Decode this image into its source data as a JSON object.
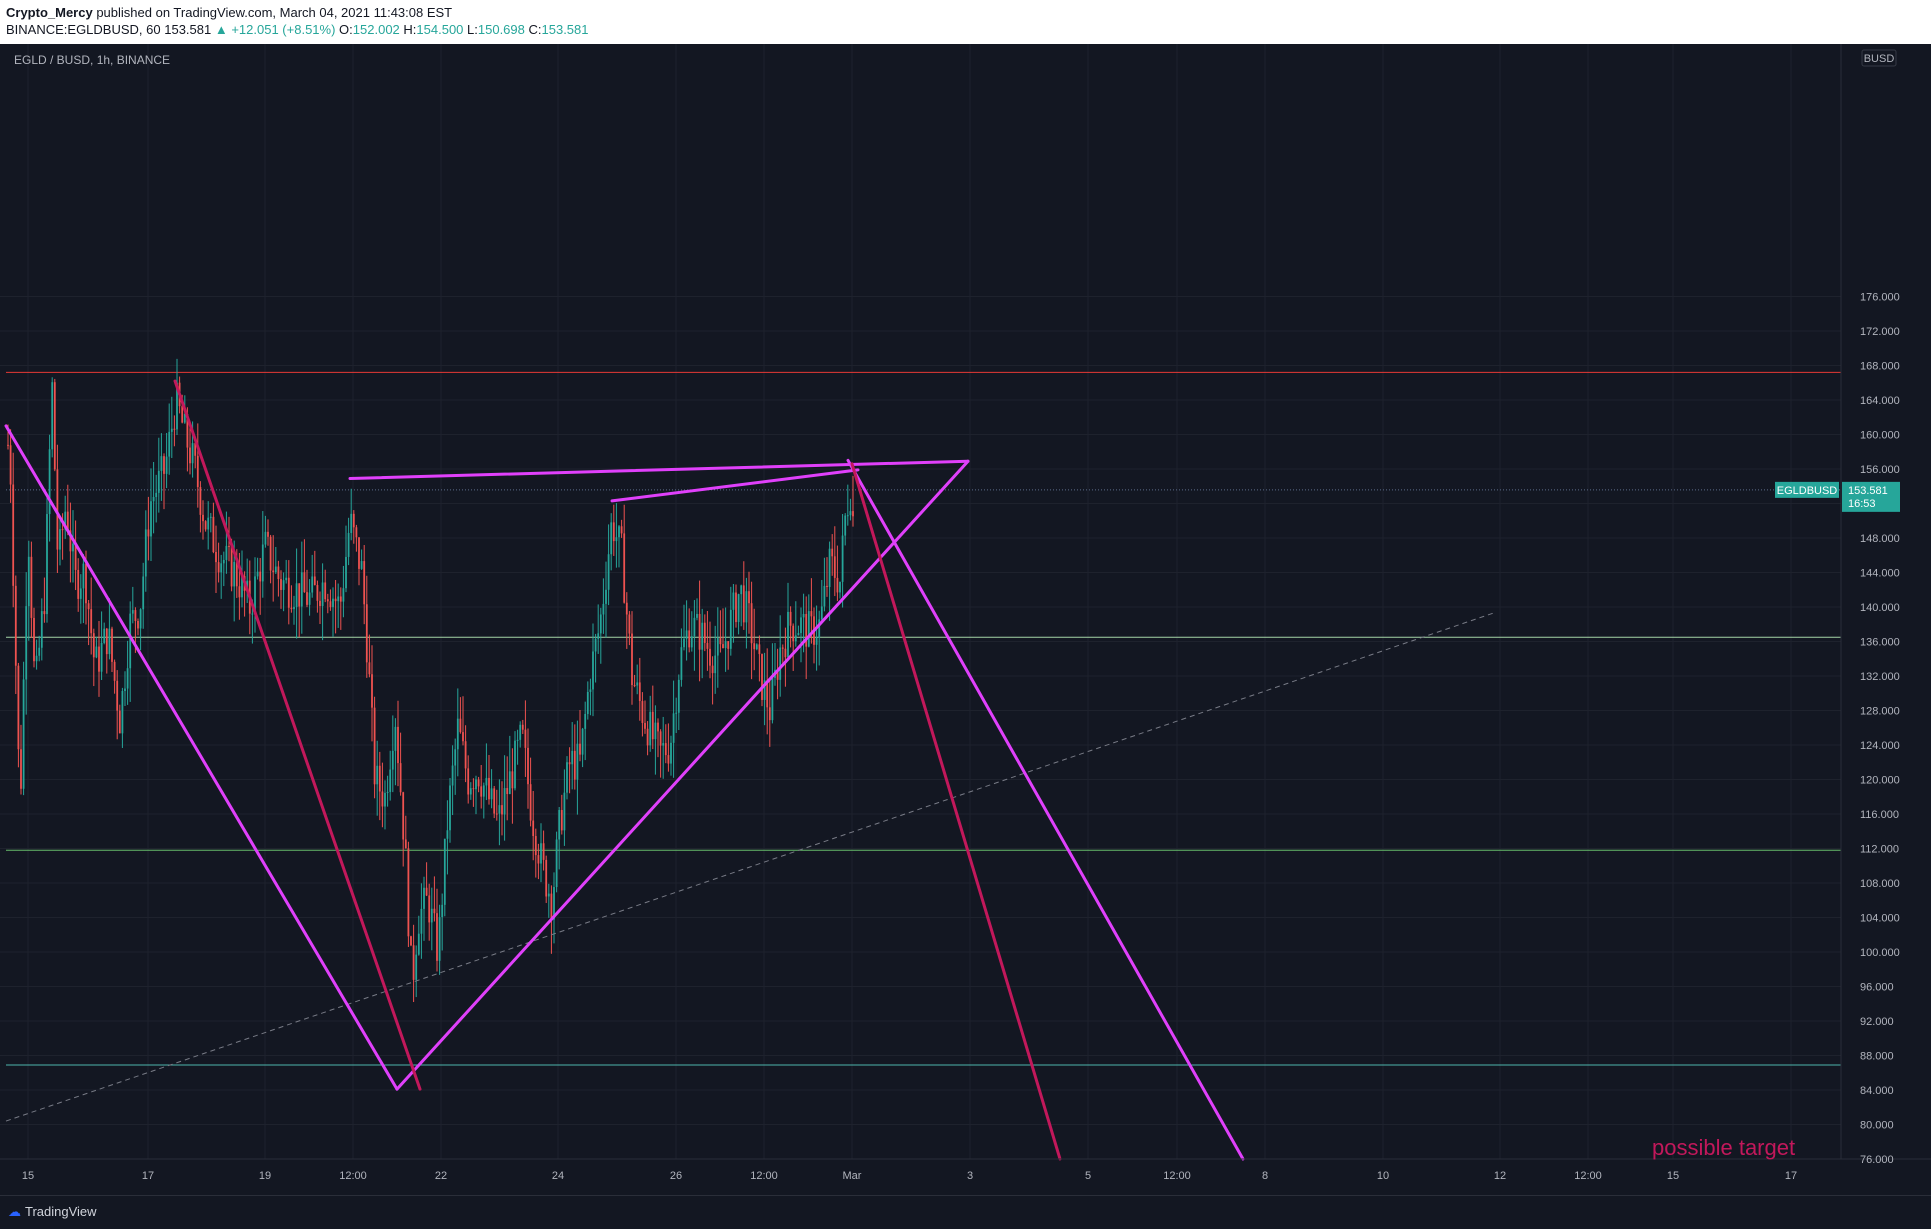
{
  "header": {
    "author": "Crypto_Mercy",
    "published_text": "published on TradingView.com, March 04, 2021 11:43:08 EST",
    "symbol_line": "BINANCE:EGLDBUSD, 60",
    "last_price": "153.581",
    "change": "▲ +12.051 (+8.51%)",
    "open_label": "O:",
    "open": "152.002",
    "high_label": "H:",
    "high": "154.500",
    "low_label": "L:",
    "low": "150.698",
    "close_label": "C:",
    "close": "153.581"
  },
  "footer": {
    "brand": "TradingView"
  },
  "chart_data": {
    "type": "candlestick",
    "title": "EGLD / BUSD, 1h, BINANCE",
    "currency_badge": "BUSD",
    "symbol_tag": "EGLDBUSD",
    "last_price": "153.581",
    "countdown": "16:53",
    "y_ticks": [
      "176.000",
      "172.000",
      "168.000",
      "164.000",
      "160.000",
      "156.000",
      "152.000",
      "148.000",
      "144.000",
      "140.000",
      "136.000",
      "132.000",
      "128.000",
      "124.000",
      "120.000",
      "116.000",
      "112.000",
      "108.000",
      "104.000",
      "100.000",
      "96.000",
      "92.000",
      "88.000",
      "84.000",
      "80.000",
      "76.000"
    ],
    "x_ticks": [
      "15",
      "17",
      "19",
      "12:00",
      "22",
      "24",
      "26",
      "12:00",
      "Mar",
      "3",
      "5",
      "12:00",
      "8",
      "10",
      "12",
      "12:00",
      "15",
      "17"
    ],
    "ylim": [
      76,
      178
    ],
    "price_path": [
      [
        0,
        162
      ],
      [
        10,
        158
      ],
      [
        20,
        116
      ],
      [
        28,
        150
      ],
      [
        35,
        130
      ],
      [
        45,
        142
      ],
      [
        52,
        166
      ],
      [
        58,
        145
      ],
      [
        66,
        152
      ],
      [
        75,
        143
      ],
      [
        85,
        144
      ],
      [
        95,
        133
      ],
      [
        108,
        137
      ],
      [
        120,
        127
      ],
      [
        130,
        138
      ],
      [
        140,
        140
      ],
      [
        150,
        152
      ],
      [
        165,
        156
      ],
      [
        176,
        164
      ],
      [
        185,
        160
      ],
      [
        195,
        156
      ],
      [
        205,
        150
      ],
      [
        220,
        146
      ],
      [
        235,
        144
      ],
      [
        250,
        140
      ],
      [
        265,
        147
      ],
      [
        280,
        143
      ],
      [
        295,
        142
      ],
      [
        310,
        141
      ],
      [
        325,
        143
      ],
      [
        340,
        140
      ],
      [
        350,
        150
      ],
      [
        362,
        144
      ],
      [
        368,
        134
      ],
      [
        375,
        120
      ],
      [
        385,
        118
      ],
      [
        395,
        128
      ],
      [
        405,
        112
      ],
      [
        412,
        96
      ],
      [
        418,
        104
      ],
      [
        428,
        106
      ],
      [
        438,
        100
      ],
      [
        448,
        116
      ],
      [
        458,
        126
      ],
      [
        468,
        120
      ],
      [
        478,
        121
      ],
      [
        488,
        118
      ],
      [
        498,
        115
      ],
      [
        510,
        120
      ],
      [
        522,
        125
      ],
      [
        532,
        116
      ],
      [
        542,
        110
      ],
      [
        552,
        106
      ],
      [
        560,
        115
      ],
      [
        570,
        122
      ],
      [
        580,
        122
      ],
      [
        590,
        132
      ],
      [
        600,
        138
      ],
      [
        612,
        150
      ],
      [
        622,
        146
      ],
      [
        632,
        132
      ],
      [
        642,
        128
      ],
      [
        652,
        125
      ],
      [
        660,
        123
      ],
      [
        670,
        124
      ],
      [
        680,
        134
      ],
      [
        690,
        138
      ],
      [
        700,
        137
      ],
      [
        710,
        135
      ],
      [
        720,
        134
      ],
      [
        730,
        138
      ],
      [
        740,
        142
      ],
      [
        750,
        138
      ],
      [
        760,
        132
      ],
      [
        770,
        128
      ],
      [
        780,
        135
      ],
      [
        790,
        138
      ],
      [
        800,
        138
      ],
      [
        810,
        137
      ],
      [
        820,
        138
      ],
      [
        830,
        145
      ],
      [
        840,
        143
      ],
      [
        845,
        150
      ],
      [
        850,
        154
      ],
      [
        855,
        148
      ]
    ],
    "horizontal_levels": [
      {
        "price": 167.2,
        "color": "#e53935"
      },
      {
        "price": 136.5,
        "color": "#a5d6a7"
      },
      {
        "price": 111.8,
        "color": "#66bb6a"
      },
      {
        "price": 86.9,
        "color": "#4db6ac"
      }
    ],
    "drawn_lines": [
      {
        "color": "#e040fb",
        "points": [
          [
            6,
            161
          ],
          [
            397,
            84.1
          ]
        ]
      },
      {
        "color": "#e040fb",
        "points": [
          [
            397,
            84.1
          ],
          [
            968,
            156.9
          ]
        ]
      },
      {
        "color": "#e040fb",
        "points": [
          [
            350,
            154.9
          ],
          [
            968,
            156.9
          ]
        ]
      },
      {
        "color": "#e040fb",
        "points": [
          [
            612,
            152.3
          ],
          [
            858,
            155.9
          ]
        ]
      },
      {
        "color": "#e040fb",
        "points": [
          [
            848,
            157.0
          ],
          [
            1243,
            76
          ]
        ]
      },
      {
        "color": "#c2185b",
        "points": [
          [
            175,
            166.2
          ],
          [
            420,
            84.1
          ]
        ]
      },
      {
        "color": "#c2185b",
        "points": [
          [
            852,
            156.6
          ],
          [
            1060,
            76
          ]
        ]
      }
    ],
    "dashed_trend": {
      "color": "#787b86",
      "points": [
        [
          6,
          80.4
        ],
        [
          1496,
          139.4
        ]
      ]
    },
    "annotation": {
      "text": "possible target",
      "color": "#c2185b"
    }
  }
}
